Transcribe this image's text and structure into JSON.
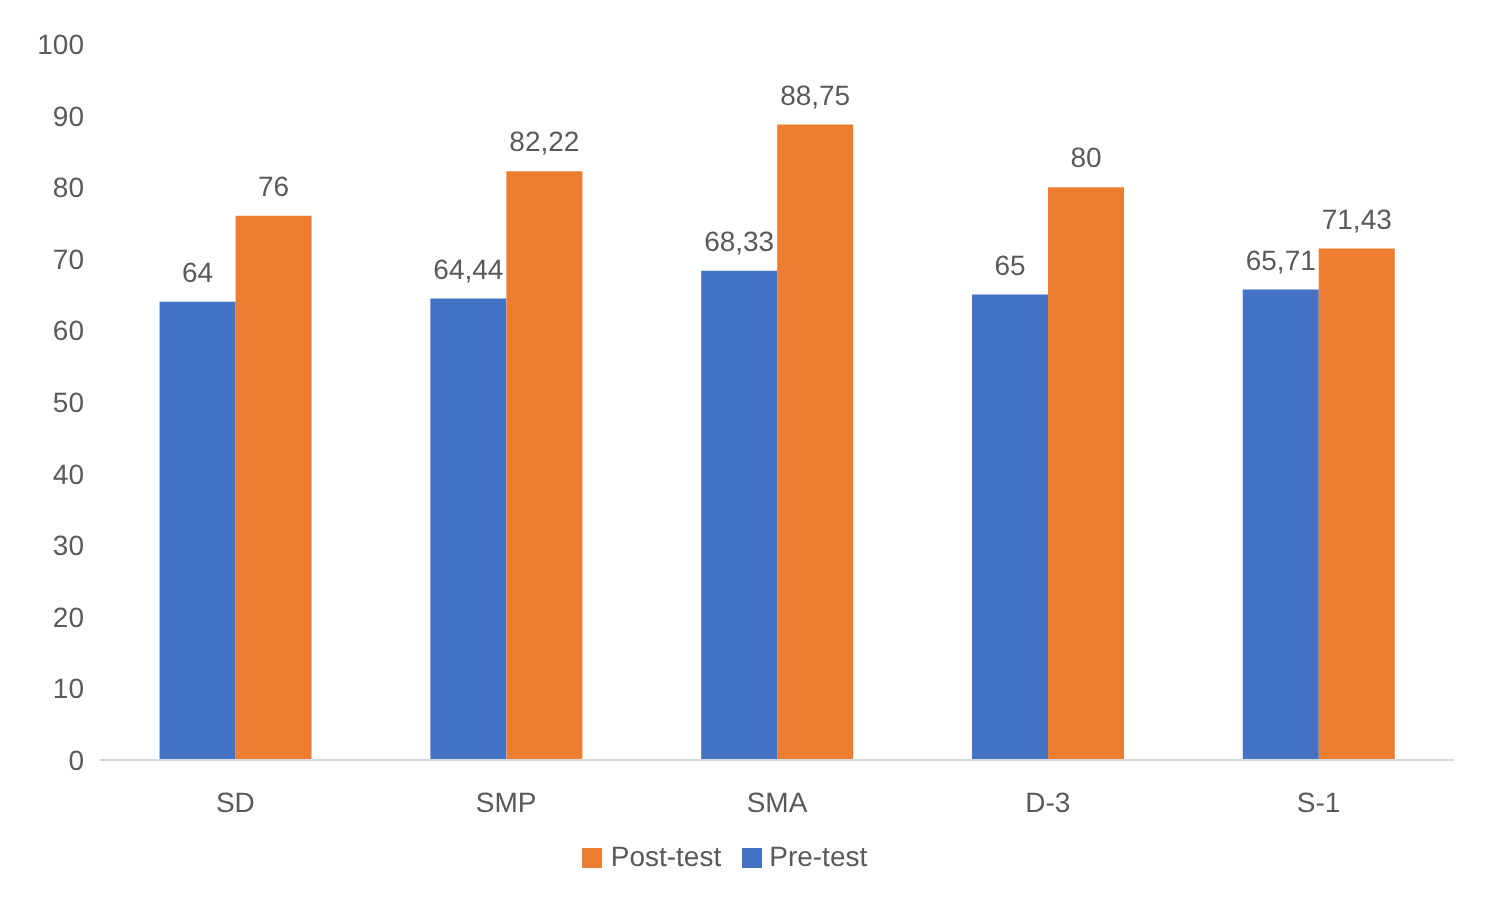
{
  "chart_data": {
    "type": "bar",
    "categories": [
      "SD",
      "SMP",
      "SMA",
      "D-3",
      "S-1"
    ],
    "series": [
      {
        "name": "Pre-test",
        "color": "#4472c4",
        "values": [
          64,
          64.44,
          68.33,
          65,
          65.71
        ],
        "value_labels": [
          "64",
          "64,44",
          "68,33",
          "65",
          "65,71"
        ]
      },
      {
        "name": "Post-test",
        "color": "#ed7d31",
        "values": [
          76,
          82.22,
          88.75,
          80,
          71.43
        ],
        "value_labels": [
          "76",
          "82,22",
          "88,75",
          "80",
          "71,43"
        ]
      }
    ],
    "ylim": [
      0,
      100
    ],
    "yticks": [
      0,
      10,
      20,
      30,
      40,
      50,
      60,
      70,
      80,
      90,
      100
    ],
    "grid": false,
    "legend": "bottom"
  }
}
